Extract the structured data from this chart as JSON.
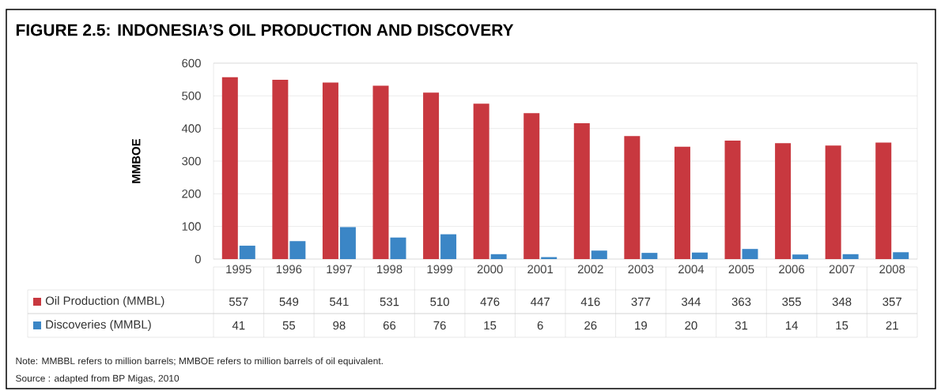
{
  "chart_data": {
    "type": "bar",
    "title": "FIGURE 2.5: INDONESIA’S OIL PRODUCTION AND DISCOVERY",
    "ylabel": "MMBOE",
    "categories": [
      "1995",
      "1996",
      "1997",
      "1998",
      "1999",
      "2000",
      "2001",
      "2002",
      "2003",
      "2004",
      "2005",
      "2006",
      "2007",
      "2008"
    ],
    "series": [
      {
        "name": "Oil Production (MMBL)",
        "color": "#c8383f",
        "values": [
          557,
          549,
          541,
          531,
          510,
          476,
          447,
          416,
          377,
          344,
          363,
          355,
          348,
          357
        ]
      },
      {
        "name": "Discoveries (MMBL)",
        "color": "#3b86c6",
        "values": [
          41,
          55,
          98,
          66,
          76,
          15,
          6,
          26,
          19,
          20,
          31,
          14,
          15,
          21
        ]
      }
    ],
    "ylim": [
      0,
      600
    ],
    "yticks": [
      0,
      100,
      200,
      300,
      400,
      500,
      600
    ],
    "grid": "y",
    "legend": "bottom left",
    "data_labels": true,
    "annotations": [
      "Note: MMBBL refers to million barrels; MMBOE refers to million barrels of oil equivalent.",
      "Source : adapted from BP Migas, 2010"
    ]
  }
}
